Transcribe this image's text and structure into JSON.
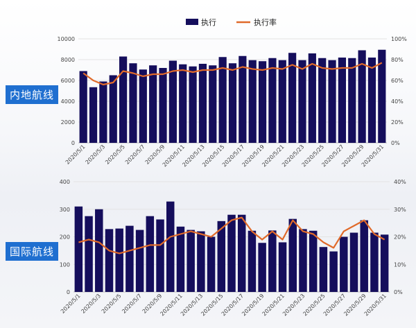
{
  "legend": {
    "bar_label": "执行",
    "line_label": "执行率"
  },
  "colors": {
    "bar": "#150e5c",
    "line": "#e06a2a",
    "label_bg": "#1f6fd0"
  },
  "chart_data": [
    {
      "type": "bar",
      "section_label": "内地航线",
      "categories": [
        "2020/5/1",
        "2020/5/2",
        "2020/5/3",
        "2020/5/4",
        "2020/5/5",
        "2020/5/6",
        "2020/5/7",
        "2020/5/8",
        "2020/5/9",
        "2020/5/10",
        "2020/5/11",
        "2020/5/12",
        "2020/5/13",
        "2020/5/14",
        "2020/5/15",
        "2020/5/16",
        "2020/5/17",
        "2020/5/18",
        "2020/5/19",
        "2020/5/20",
        "2020/5/21",
        "2020/5/22",
        "2020/5/23",
        "2020/5/24",
        "2020/5/25",
        "2020/5/26",
        "2020/5/27",
        "2020/5/28",
        "2020/5/29",
        "2020/5/30",
        "2020/5/31"
      ],
      "tick_labels": [
        "2020/5/1",
        "2020/5/3",
        "2020/5/5",
        "2020/5/7",
        "2020/5/9",
        "2020/5/11",
        "2020/5/13",
        "2020/5/15",
        "2020/5/17",
        "2020/5/19",
        "2020/5/21",
        "2020/5/23",
        "2020/5/25",
        "2020/5/27",
        "2020/5/29",
        "2020/5/31"
      ],
      "series": [
        {
          "name": "执行",
          "type": "bar",
          "axis": "left",
          "values": [
            6900,
            5350,
            5900,
            6500,
            8300,
            7650,
            7050,
            7450,
            7200,
            7900,
            7550,
            7350,
            7600,
            7450,
            8250,
            7650,
            8350,
            7950,
            7850,
            8150,
            7950,
            8650,
            7950,
            8600,
            8150,
            7950,
            8200,
            8150,
            8900,
            8200,
            8950
          ]
        },
        {
          "name": "执行率",
          "type": "line",
          "axis": "right",
          "values": [
            67,
            60,
            56,
            58,
            69,
            67,
            64,
            66,
            66,
            69,
            70,
            68,
            70,
            70,
            72,
            70,
            73,
            71,
            70,
            72,
            71,
            75,
            71,
            76,
            72,
            71,
            72,
            72,
            76,
            72,
            77
          ]
        }
      ],
      "ylim_left": [
        0,
        10000
      ],
      "ylim_right": [
        0,
        100
      ],
      "left_ticks": [
        "0",
        "2000",
        "4000",
        "6000",
        "8000",
        "10000"
      ],
      "right_ticks": [
        "0%",
        "20%",
        "40%",
        "60%",
        "80%",
        "100%"
      ]
    },
    {
      "type": "bar",
      "section_label": "国际航线",
      "categories": [
        "2020/5/1",
        "2020/5/2",
        "2020/5/3",
        "2020/5/4",
        "2020/5/5",
        "2020/5/6",
        "2020/5/7",
        "2020/5/8",
        "2020/5/9",
        "2020/5/10",
        "2020/5/11",
        "2020/5/12",
        "2020/5/13",
        "2020/5/14",
        "2020/5/15",
        "2020/5/16",
        "2020/5/17",
        "2020/5/18",
        "2020/5/19",
        "2020/5/20",
        "2020/5/21",
        "2020/5/22",
        "2020/5/23",
        "2020/5/24",
        "2020/5/25",
        "2020/5/26",
        "2020/5/27",
        "2020/5/28",
        "2020/5/29",
        "2020/5/30",
        "2020/5/31"
      ],
      "tick_labels": [
        "2020/5/1",
        "2020/5/3",
        "2020/5/5",
        "2020/5/7",
        "2020/5/9",
        "2020/5/11",
        "2020/5/13",
        "2020/5/15",
        "2020/5/17",
        "2020/5/19",
        "2020/5/21",
        "2020/5/23",
        "2020/5/25",
        "2020/5/27",
        "2020/5/29",
        "2020/5/31"
      ],
      "series": [
        {
          "name": "执行",
          "type": "bar",
          "axis": "left",
          "values": [
            310,
            275,
            300,
            228,
            230,
            240,
            225,
            275,
            263,
            328,
            237,
            225,
            220,
            200,
            257,
            280,
            280,
            222,
            178,
            223,
            180,
            265,
            228,
            222,
            163,
            147,
            200,
            215,
            260,
            215,
            208
          ]
        },
        {
          "name": "执行率",
          "type": "line",
          "axis": "right",
          "values": [
            18,
            19,
            18,
            15,
            14,
            15,
            16,
            17,
            17,
            20,
            21,
            22,
            21,
            20,
            23,
            26,
            27,
            22,
            19,
            22,
            19,
            26,
            22,
            21,
            18,
            16,
            22,
            24,
            26,
            21,
            19
          ]
        }
      ],
      "ylim_left": [
        0,
        400
      ],
      "ylim_right": [
        0,
        40
      ],
      "left_ticks": [
        "0",
        "100",
        "200",
        "300",
        "400"
      ],
      "right_ticks": [
        "0%",
        "10%",
        "20%",
        "30%",
        "40%"
      ]
    }
  ]
}
